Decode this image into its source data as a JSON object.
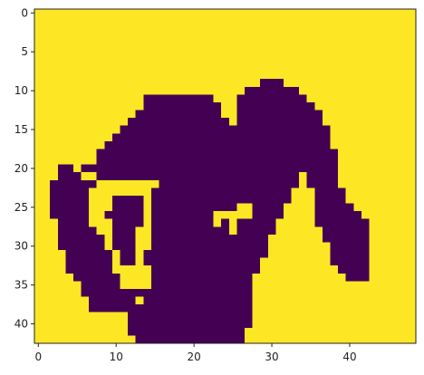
{
  "chart_data": {
    "type": "heatmap",
    "title": "",
    "xlabel": "",
    "ylabel": "",
    "colormap": "viridis",
    "colors": {
      "low": "#440154",
      "high": "#fde725"
    },
    "grid": false,
    "legend": "none",
    "xlim": [
      -0.5,
      48.5
    ],
    "ylim": [
      42.5,
      -0.5
    ],
    "xticks": [
      0,
      10,
      20,
      30,
      40
    ],
    "yticks": [
      0,
      5,
      10,
      15,
      20,
      25,
      30,
      35,
      40
    ],
    "xtick_labels": [
      "0",
      "10",
      "20",
      "30",
      "40"
    ],
    "ytick_labels": [
      "0",
      "5",
      "10",
      "15",
      "20",
      "25",
      "30",
      "35",
      "40"
    ],
    "grid_size": {
      "cols": 49,
      "rows": 43
    },
    "values_legend": {
      "0": "dark (purple)",
      "1": "light (yellow)"
    },
    "dark_cell_ranges_by_row": [
      [],
      [],
      [],
      [],
      [],
      [],
      [],
      [],
      [],
      [
        [
          29,
          31
        ]
      ],
      [
        [
          27,
          33
        ]
      ],
      [
        [
          14,
          22
        ],
        [
          26,
          34
        ]
      ],
      [
        [
          14,
          23
        ],
        [
          26,
          35
        ]
      ],
      [
        [
          13,
          23
        ],
        [
          26,
          36
        ]
      ],
      [
        [
          12,
          24
        ],
        [
          26,
          36
        ]
      ],
      [
        [
          11,
          37
        ]
      ],
      [
        [
          10,
          37
        ]
      ],
      [
        [
          9,
          37
        ]
      ],
      [
        [
          8,
          38
        ]
      ],
      [
        [
          8,
          38
        ]
      ],
      [
        [
          3,
          4
        ],
        [
          6,
          38
        ]
      ],
      [
        [
          3,
          5
        ],
        [
          8,
          33
        ],
        [
          35,
          38
        ]
      ],
      [
        [
          2,
          7
        ],
        [
          16,
          33
        ],
        [
          35,
          38
        ]
      ],
      [
        [
          2,
          6
        ],
        [
          15,
          32
        ],
        [
          36,
          39
        ]
      ],
      [
        [
          2,
          6
        ],
        [
          10,
          13
        ],
        [
          15,
          32
        ],
        [
          36,
          39
        ]
      ],
      [
        [
          2,
          6
        ],
        [
          10,
          13
        ],
        [
          15,
          25
        ],
        [
          28,
          31
        ],
        [
          36,
          40
        ]
      ],
      [
        [
          2,
          6
        ],
        [
          9,
          13
        ],
        [
          15,
          22
        ],
        [
          28,
          31
        ],
        [
          36,
          41
        ]
      ],
      [
        [
          3,
          6
        ],
        [
          10,
          13
        ],
        [
          15,
          22
        ],
        [
          24,
          24
        ],
        [
          26,
          30
        ],
        [
          36,
          42
        ]
      ],
      [
        [
          3,
          7
        ],
        [
          10,
          12
        ],
        [
          15,
          24
        ],
        [
          26,
          30
        ],
        [
          37,
          42
        ]
      ],
      [
        [
          3,
          8
        ],
        [
          10,
          12
        ],
        [
          15,
          29
        ],
        [
          37,
          42
        ]
      ],
      [
        [
          3,
          8
        ],
        [
          10,
          12
        ],
        [
          15,
          29
        ],
        [
          38,
          42
        ]
      ],
      [
        [
          4,
          9
        ],
        [
          11,
          12
        ],
        [
          14,
          29
        ],
        [
          38,
          42
        ]
      ],
      [
        [
          4,
          9
        ],
        [
          11,
          12
        ],
        [
          14,
          28
        ],
        [
          38,
          42
        ]
      ],
      [
        [
          4,
          9
        ],
        [
          15,
          28
        ],
        [
          39,
          42
        ]
      ],
      [
        [
          5,
          10
        ],
        [
          15,
          27
        ],
        [
          40,
          42
        ]
      ],
      [
        [
          6,
          10
        ],
        [
          15,
          27
        ]
      ],
      [
        [
          6,
          27
        ]
      ],
      [
        [
          7,
          12
        ],
        [
          14,
          27
        ]
      ],
      [
        [
          7,
          27
        ]
      ],
      [
        [
          12,
          27
        ]
      ],
      [
        [
          12,
          27
        ]
      ],
      [
        [
          12,
          26
        ]
      ],
      [
        [
          13,
          26
        ]
      ]
    ]
  }
}
